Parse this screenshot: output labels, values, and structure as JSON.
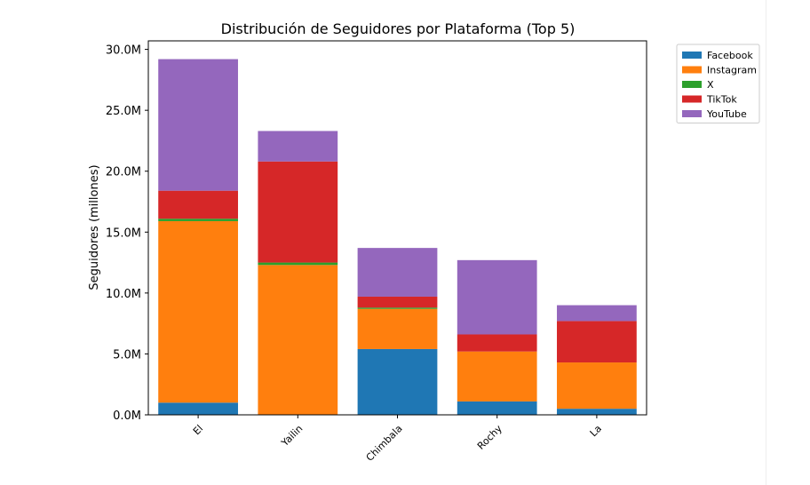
{
  "chart_data": {
    "type": "bar",
    "stacked": true,
    "title": "Distribución de Seguidores por Plataforma (Top 5)",
    "xlabel": "",
    "ylabel": "Seguidores (millones)",
    "ylim": [
      0,
      30.7
    ],
    "yticks": [
      0,
      5,
      10,
      15,
      20,
      25,
      30
    ],
    "ytick_labels": [
      "0.0M",
      "5.0M",
      "10.0M",
      "15.0M",
      "20.0M",
      "25.0M",
      "30.0M"
    ],
    "categories": [
      "El",
      "Yailin",
      "Chimbala",
      "Rochy",
      "La"
    ],
    "legend_position": "outside-top-right",
    "series": [
      {
        "name": "Facebook",
        "color": "#1f77b4",
        "values": [
          1.0,
          0.0,
          5.4,
          1.1,
          0.5
        ]
      },
      {
        "name": "Instagram",
        "color": "#ff7f0e",
        "values": [
          14.9,
          12.3,
          3.3,
          4.1,
          3.8
        ]
      },
      {
        "name": "X",
        "color": "#2ca02c",
        "values": [
          0.2,
          0.2,
          0.1,
          0.0,
          0.0
        ]
      },
      {
        "name": "TikTok",
        "color": "#d62728",
        "values": [
          2.3,
          8.3,
          0.9,
          1.4,
          3.4
        ]
      },
      {
        "name": "YouTube",
        "color": "#9467bd",
        "values": [
          10.8,
          2.5,
          4.0,
          6.1,
          1.3
        ]
      }
    ]
  }
}
